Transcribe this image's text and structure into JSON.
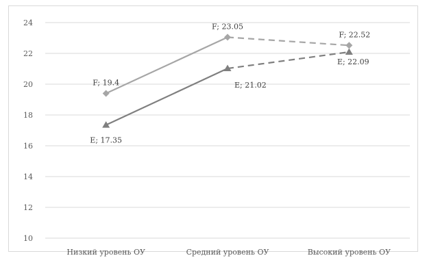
{
  "chart_data": {
    "type": "line",
    "categories": [
      "Низкий уровень ОУ",
      "Средний уровень ОУ",
      "Высокий уровень ОУ"
    ],
    "y_ticks": [
      "10",
      "12",
      "14",
      "16",
      "18",
      "20",
      "22",
      "24"
    ],
    "ylim": [
      10,
      24
    ],
    "grid": true,
    "legend": "none",
    "series": [
      {
        "values": [
          19.4,
          23.05,
          22.52
        ],
        "labels": [
          "F; 19.4",
          "F; 23.05",
          "F; 22.52"
        ],
        "color": "#a6a6a6",
        "marker": "diamond"
      },
      {
        "values": [
          17.35,
          21.02,
          22.09
        ],
        "labels": [
          "E; 17.35",
          "E; 21.02",
          "E; 22.09"
        ],
        "color": "#7f7f7f",
        "marker": "triangle"
      }
    ]
  }
}
